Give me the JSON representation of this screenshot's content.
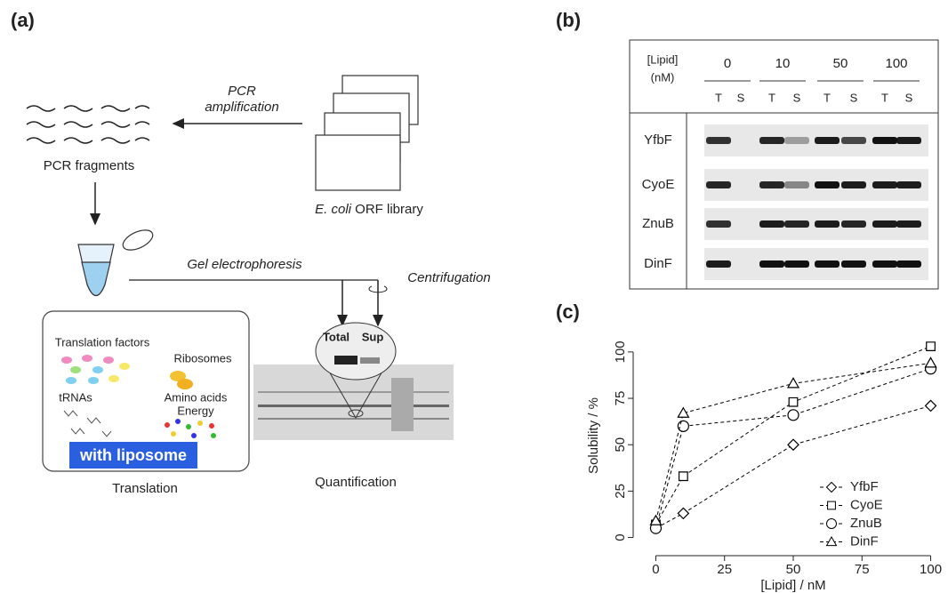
{
  "panel_a": {
    "label": "(a)",
    "pcr_line1": "PCR",
    "pcr_line2": "amplification",
    "fragments": "PCR fragments",
    "library_italic": "E. coli",
    "library_rest": "ORF library",
    "gel": "Gel electrophoresis",
    "centrifugation": "Centrifugation",
    "translation_factors": "Translation factors",
    "ribosomes": "Ribosomes",
    "trnas": "tRNAs",
    "amino_acids": "Amino acids",
    "energy": "Energy",
    "liposome": "with liposome",
    "translation": "Translation",
    "total": "Total",
    "sup": "Sup",
    "quantification": "Quantification"
  },
  "panel_b": {
    "label": "(b)",
    "lipid": "[Lipid]",
    "unit": "(nM)",
    "concentrations": [
      "0",
      "10",
      "50",
      "100"
    ],
    "lanes": [
      "T",
      "S",
      "T",
      "S",
      "T",
      "S",
      "T",
      "S"
    ],
    "proteins": [
      "YfbF",
      "CyoE",
      "ZnuB",
      "DinF"
    ]
  },
  "panel_c": {
    "label": "(c)"
  },
  "chart_data": {
    "type": "line",
    "xlabel": "[Lipid] / nM",
    "ylabel": "Solubility / %",
    "x": [
      0,
      10,
      50,
      100
    ],
    "series": [
      {
        "name": "YfbF",
        "color": "#000000",
        "marker": "diamond",
        "values": [
          5,
          13,
          50,
          71
        ]
      },
      {
        "name": "CyoE",
        "color": "#000000",
        "marker": "square",
        "values": [
          7,
          33,
          73,
          103
        ]
      },
      {
        "name": "ZnuB",
        "color": "#000000",
        "marker": "circle",
        "values": [
          5,
          60,
          66,
          91
        ]
      },
      {
        "name": "DinF",
        "color": "#000000",
        "marker": "triangle",
        "values": [
          9,
          67,
          83,
          94
        ]
      }
    ],
    "xlim": [
      -5,
      105
    ],
    "ylim": [
      -5,
      110
    ],
    "xticks": [
      0,
      25,
      50,
      75,
      100
    ],
    "yticks": [
      0,
      25,
      50,
      75,
      100
    ],
    "legend": "lower right",
    "line_style": "dashed"
  }
}
